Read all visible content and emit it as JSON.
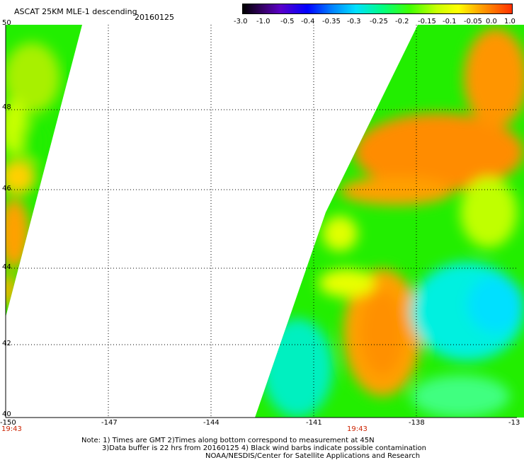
{
  "title": "ASCAT 25KM MLE-1 descending",
  "date": "20160125",
  "colorbar": {
    "labels": [
      "-3.0",
      "-1.0",
      "-0.5",
      "-0.4",
      "-0.35",
      "-0.3",
      "-0.25",
      "-0.2",
      "-0.15",
      "-0.1",
      "-0.05",
      "0.0",
      "1.0"
    ]
  },
  "axes": {
    "lat_labels": [
      "50",
      "48",
      "46",
      "44",
      "42",
      "40"
    ],
    "lon_labels": [
      "-150",
      "-147",
      "-144",
      "-141",
      "-138",
      "-13"
    ],
    "time_left": "19:43",
    "time_right": "19:43"
  },
  "notes": {
    "line1": "Note: 1) Times are GMT 2)Times along bottom correspond to measurement at 45N",
    "line2": "3)Data buffer is 22 hrs from 20160125 4) Black wind barbs indicate possible contamination",
    "line3": "NOAA/NESDIS/Center for Satellite Applications and Research"
  },
  "colors": {
    "orange": "#ff8c00",
    "green": "#22ee00",
    "cyan": "#00f0e0",
    "yellow": "#f8ff00",
    "time_red": "#cc2200"
  }
}
